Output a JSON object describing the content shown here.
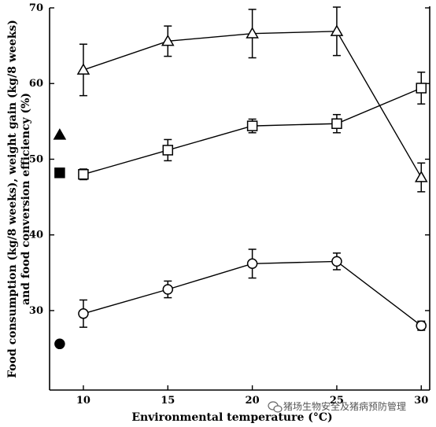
{
  "chart_data": {
    "type": "line",
    "xlabel": "Environmental temperature (°C)",
    "ylabel_lines": [
      "Food consumption (kg/8 weeks), weight gain (kg/8 weeks)",
      "and food conversion efficiency (%)"
    ],
    "xlim": [
      8,
      30.5
    ],
    "ylim": [
      19.5,
      70
    ],
    "x_ticks": [
      10,
      15,
      20,
      25,
      30
    ],
    "y_ticks": [
      30,
      40,
      50,
      60,
      70
    ],
    "grid": false,
    "series": [
      {
        "marker": "triangle",
        "x": [
          10,
          15,
          20,
          25,
          30
        ],
        "y": [
          61.8,
          65.6,
          66.6,
          66.9,
          47.6
        ],
        "err": [
          3.4,
          2.0,
          3.2,
          3.2,
          1.9
        ]
      },
      {
        "marker": "square",
        "x": [
          10,
          15,
          20,
          25,
          30
        ],
        "y": [
          48.0,
          51.2,
          54.4,
          54.7,
          59.4
        ],
        "err": [
          0.7,
          1.4,
          0.9,
          1.2,
          2.1
        ]
      },
      {
        "marker": "circle",
        "x": [
          10,
          15,
          20,
          25,
          30
        ],
        "y": [
          29.6,
          32.8,
          36.2,
          36.5,
          28.0
        ],
        "err": [
          1.8,
          1.1,
          1.9,
          1.1,
          0.6
        ]
      }
    ],
    "reference_points": [
      {
        "marker": "triangle",
        "x": 8.6,
        "y": 53.2
      },
      {
        "marker": "square",
        "x": 8.6,
        "y": 48.2
      },
      {
        "marker": "circle",
        "x": 8.6,
        "y": 25.6
      }
    ]
  },
  "watermark": {
    "text": "猪场生物安全及猪病预防管理",
    "icon": "wechat-icon"
  }
}
